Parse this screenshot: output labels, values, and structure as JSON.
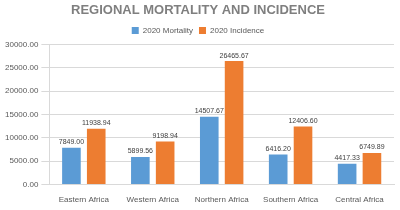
{
  "chart_data": {
    "type": "bar",
    "title": "REGIONAL MORTALITY AND INCIDENCE",
    "categories": [
      "Eastern Africa",
      "Western Africa",
      "Northern Africa",
      "Southern Africa",
      "Central Africa"
    ],
    "series": [
      {
        "name": "2020 Mortality",
        "color": "#5b9bd5",
        "values": [
          7849,
          5899.56,
          14507.67,
          6416.2,
          4417.33
        ],
        "value_labels": [
          "7849.00",
          "5899.56",
          "14507.67",
          "6416.20",
          "4417.33"
        ]
      },
      {
        "name": "2020 Incidence",
        "color": "#ed7d31",
        "values": [
          11938.94,
          9198.94,
          26465.67,
          12406.6,
          6749.89
        ],
        "value_labels": [
          "11938.94",
          "9198.94",
          "26465.67",
          "12406.60",
          "6749.89"
        ]
      }
    ],
    "ylim": [
      0,
      30000
    ],
    "yticks": [
      {
        "value": 0,
        "label": "0.00"
      },
      {
        "value": 5000,
        "label": "5000.00"
      },
      {
        "value": 10000,
        "label": "10000.00"
      },
      {
        "value": 15000,
        "label": "15000.00"
      },
      {
        "value": 20000,
        "label": "20000.00"
      },
      {
        "value": 25000,
        "label": "25000.00"
      },
      {
        "value": 30000,
        "label": "30000.00"
      }
    ],
    "grid": true,
    "legend": "top",
    "data_labels": true
  }
}
